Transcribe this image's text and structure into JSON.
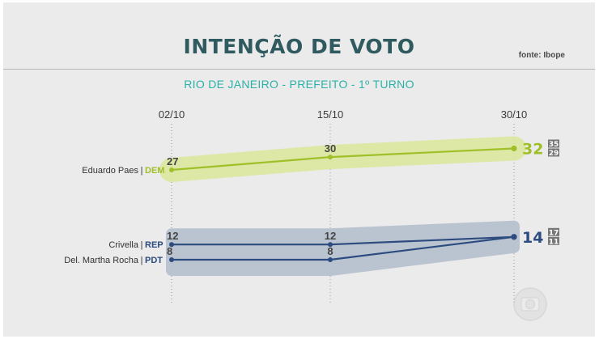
{
  "header": {
    "title": "INTENÇÃO DE VOTO",
    "source": "fonte: Ibope",
    "subtitle": "RIO DE JANEIRO - PREFEITO - 1º TURNO"
  },
  "colors": {
    "green": "#9fc028",
    "green_band": "#dbe89e",
    "blue": "#2c4b7f",
    "blue_band": "#b5bfce",
    "title": "#2f5a5f",
    "subtitle": "#2cb1a8",
    "range_box": "#777777"
  },
  "chart_data": {
    "type": "line",
    "x": [
      "02/10",
      "15/10",
      "30/10"
    ],
    "series": [
      {
        "name": "Eduardo Paes",
        "party": "DEM",
        "values": [
          27,
          30,
          32
        ],
        "labels": [
          "27",
          "30",
          "32"
        ],
        "range": [
          "35",
          "29"
        ],
        "color": "green"
      },
      {
        "name": "Crivella",
        "party": "REP",
        "values": [
          12,
          12,
          14
        ],
        "labels": [
          "12",
          "12",
          "14"
        ],
        "range": [
          "17",
          "11"
        ],
        "color": "blue"
      },
      {
        "name": "Del. Martha Rocha",
        "party": "PDT",
        "values": [
          8,
          8,
          14
        ],
        "labels": [
          "8",
          "8",
          ""
        ],
        "range": [],
        "color": "blue"
      }
    ]
  }
}
